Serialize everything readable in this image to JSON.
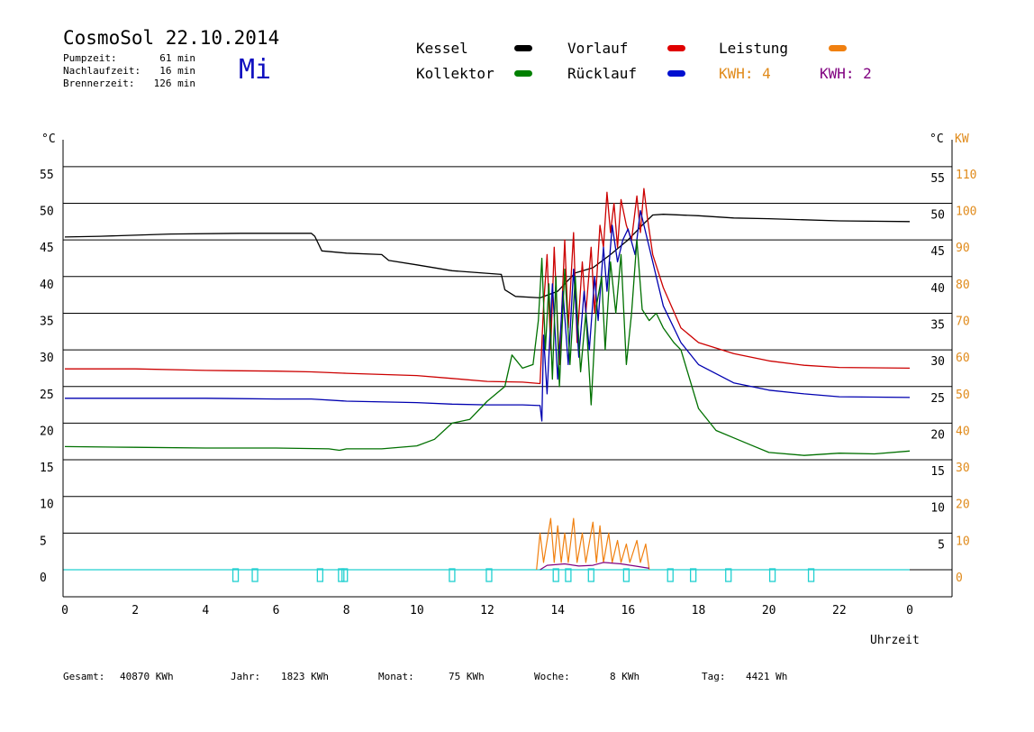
{
  "header": {
    "title": "CosmoSol 22.10.2014",
    "day": "Mi",
    "stats": [
      {
        "label": "Pumpzeit:",
        "value": "61 min"
      },
      {
        "label": "Nachlaufzeit:",
        "value": "16 min"
      },
      {
        "label": "Brennerzeit:",
        "value": "126 min"
      }
    ]
  },
  "legend": {
    "items": [
      {
        "label": "Kessel",
        "color": "#000000"
      },
      {
        "label": "Vorlauf",
        "color": "#e00000"
      },
      {
        "label": "Leistung",
        "color": "#f08010"
      },
      {
        "label": "Kollektor",
        "color": "#008000"
      },
      {
        "label": "Rücklauf",
        "color": "#0010d0"
      }
    ],
    "kwh": [
      {
        "text": "KWH: 4",
        "color": "#e08a1a"
      },
      {
        "text": "KWH: 2",
        "color": "#800080"
      }
    ]
  },
  "footer": [
    {
      "label": "Gesamt:",
      "value": "40870 KWh"
    },
    {
      "label": "Jahr:",
      "value": "1823 KWh"
    },
    {
      "label": "Monat:",
      "value": "75 KWh"
    },
    {
      "label": "Woche:",
      "value": "8 KWh"
    },
    {
      "label": "Tag:",
      "value": "4421 Wh"
    }
  ],
  "chart_data": {
    "type": "line",
    "xlabel": "Uhrzeit",
    "ylabel_left": "°C",
    "ylabel_right_1": "°C",
    "ylabel_right_2": "KW",
    "xlim": [
      0,
      24
    ],
    "ylim": [
      -4,
      60
    ],
    "x_ticks": [
      "0",
      "2",
      "4",
      "6",
      "8",
      "10",
      "12",
      "14",
      "16",
      "18",
      "20",
      "22",
      "0"
    ],
    "y_ticks_left": [
      0,
      5,
      10,
      15,
      20,
      25,
      30,
      35,
      40,
      45,
      50,
      55
    ],
    "y_ticks_right_c": [
      5,
      10,
      15,
      20,
      25,
      30,
      35,
      40,
      45,
      50,
      55
    ],
    "y_ticks_right_kw": [
      0,
      10,
      20,
      30,
      40,
      50,
      60,
      70,
      80,
      90,
      100,
      110
    ],
    "grid": true,
    "colors": {
      "kessel": "#000000",
      "vorlauf": "#cc0000",
      "ruecklauf": "#0000b0",
      "kollektor": "#007000",
      "leistung": "#f08010",
      "leistung2": "#800080",
      "pump": "#20d0d0",
      "baseline": "#20d0d0"
    },
    "series": [
      {
        "name": "Kessel",
        "key": "kessel",
        "points": [
          [
            0,
            45.4
          ],
          [
            1,
            45.5
          ],
          [
            3,
            45.8
          ],
          [
            5,
            45.9
          ],
          [
            7,
            45.9
          ],
          [
            7.1,
            45.5
          ],
          [
            7.3,
            43.5
          ],
          [
            8,
            43.2
          ],
          [
            9,
            43
          ],
          [
            9.2,
            42.2
          ],
          [
            10,
            41.6
          ],
          [
            11,
            40.8
          ],
          [
            12.4,
            40.3
          ],
          [
            12.5,
            38.2
          ],
          [
            12.8,
            37.3
          ],
          [
            13.5,
            37.1
          ],
          [
            14,
            38
          ],
          [
            14.5,
            40.5
          ],
          [
            15,
            41.2
          ],
          [
            15.5,
            43
          ],
          [
            16,
            45
          ],
          [
            16.4,
            47
          ],
          [
            16.7,
            48.4
          ],
          [
            17,
            48.5
          ],
          [
            18,
            48.3
          ],
          [
            19,
            48
          ],
          [
            20,
            47.9
          ],
          [
            22,
            47.6
          ],
          [
            24,
            47.5
          ]
        ]
      },
      {
        "name": "Vorlauf",
        "key": "vorlauf",
        "points": [
          [
            0,
            27.4
          ],
          [
            2,
            27.4
          ],
          [
            4,
            27.2
          ],
          [
            6,
            27.1
          ],
          [
            7,
            27
          ],
          [
            8,
            26.8
          ],
          [
            10,
            26.5
          ],
          [
            11,
            26.1
          ],
          [
            12,
            25.7
          ],
          [
            13,
            25.6
          ],
          [
            13.5,
            25.4
          ],
          [
            13.6,
            36
          ],
          [
            13.7,
            43
          ],
          [
            13.8,
            30
          ],
          [
            13.9,
            44
          ],
          [
            14.05,
            28
          ],
          [
            14.2,
            45
          ],
          [
            14.3,
            33
          ],
          [
            14.45,
            46
          ],
          [
            14.55,
            31
          ],
          [
            14.7,
            42
          ],
          [
            14.8,
            35
          ],
          [
            14.95,
            44
          ],
          [
            15.05,
            35
          ],
          [
            15.2,
            47
          ],
          [
            15.3,
            44
          ],
          [
            15.4,
            51.5
          ],
          [
            15.5,
            46
          ],
          [
            15.6,
            50
          ],
          [
            15.7,
            44
          ],
          [
            15.8,
            50.5
          ],
          [
            15.95,
            47
          ],
          [
            16.1,
            45
          ],
          [
            16.25,
            51
          ],
          [
            16.35,
            46
          ],
          [
            16.45,
            52
          ],
          [
            16.55,
            48
          ],
          [
            16.7,
            43
          ],
          [
            17,
            38.5
          ],
          [
            17.5,
            33
          ],
          [
            18,
            31
          ],
          [
            19,
            29.5
          ],
          [
            20,
            28.5
          ],
          [
            21,
            27.9
          ],
          [
            22,
            27.6
          ],
          [
            24,
            27.5
          ]
        ]
      },
      {
        "name": "Rücklauf",
        "key": "ruecklauf",
        "points": [
          [
            0,
            23.4
          ],
          [
            2,
            23.4
          ],
          [
            4,
            23.4
          ],
          [
            6,
            23.3
          ],
          [
            7,
            23.3
          ],
          [
            8,
            23
          ],
          [
            10,
            22.8
          ],
          [
            11,
            22.6
          ],
          [
            12,
            22.5
          ],
          [
            13,
            22.5
          ],
          [
            13.5,
            22.4
          ],
          [
            13.55,
            20.3
          ],
          [
            13.6,
            32
          ],
          [
            13.7,
            24
          ],
          [
            13.85,
            39
          ],
          [
            14,
            26
          ],
          [
            14.15,
            38
          ],
          [
            14.3,
            28
          ],
          [
            14.45,
            41
          ],
          [
            14.6,
            29
          ],
          [
            14.75,
            38
          ],
          [
            14.9,
            30
          ],
          [
            15.05,
            40
          ],
          [
            15.15,
            34
          ],
          [
            15.3,
            44
          ],
          [
            15.4,
            38
          ],
          [
            15.55,
            47
          ],
          [
            15.7,
            42
          ],
          [
            15.85,
            45
          ],
          [
            16,
            46.5
          ],
          [
            16.2,
            43
          ],
          [
            16.35,
            49
          ],
          [
            16.5,
            46
          ],
          [
            16.7,
            42
          ],
          [
            17,
            36
          ],
          [
            17.5,
            31
          ],
          [
            18,
            28
          ],
          [
            19,
            25.5
          ],
          [
            20,
            24.5
          ],
          [
            21,
            24
          ],
          [
            22,
            23.6
          ],
          [
            24,
            23.5
          ]
        ]
      },
      {
        "name": "Kollektor",
        "key": "kollektor",
        "points": [
          [
            0,
            16.8
          ],
          [
            2,
            16.7
          ],
          [
            4,
            16.6
          ],
          [
            6,
            16.6
          ],
          [
            7.5,
            16.5
          ],
          [
            7.8,
            16.3
          ],
          [
            8,
            16.5
          ],
          [
            9,
            16.5
          ],
          [
            10,
            16.9
          ],
          [
            10.5,
            17.8
          ],
          [
            11,
            20
          ],
          [
            11.5,
            20.5
          ],
          [
            12,
            23
          ],
          [
            12.5,
            25
          ],
          [
            12.7,
            29.3
          ],
          [
            13,
            27.5
          ],
          [
            13.3,
            28
          ],
          [
            13.45,
            34
          ],
          [
            13.55,
            42.5
          ],
          [
            13.65,
            30
          ],
          [
            13.75,
            39
          ],
          [
            13.85,
            26
          ],
          [
            13.95,
            40
          ],
          [
            14.05,
            25
          ],
          [
            14.2,
            41
          ],
          [
            14.35,
            28
          ],
          [
            14.5,
            40
          ],
          [
            14.65,
            27
          ],
          [
            14.8,
            35
          ],
          [
            14.95,
            22.5
          ],
          [
            15.1,
            36
          ],
          [
            15.25,
            40
          ],
          [
            15.35,
            30
          ],
          [
            15.5,
            42
          ],
          [
            15.65,
            35
          ],
          [
            15.8,
            43
          ],
          [
            15.95,
            28
          ],
          [
            16.1,
            35
          ],
          [
            16.25,
            45
          ],
          [
            16.4,
            35.5
          ],
          [
            16.6,
            34
          ],
          [
            16.8,
            35
          ],
          [
            17,
            33
          ],
          [
            17.3,
            31
          ],
          [
            17.5,
            30
          ],
          [
            18,
            22
          ],
          [
            18.5,
            19
          ],
          [
            19,
            18
          ],
          [
            19.5,
            17
          ],
          [
            20,
            16
          ],
          [
            21,
            15.6
          ],
          [
            22,
            15.9
          ],
          [
            23,
            15.8
          ],
          [
            24,
            16.2
          ]
        ]
      },
      {
        "name": "Leistung",
        "key": "leistung",
        "points": [
          [
            13.4,
            0
          ],
          [
            13.5,
            5
          ],
          [
            13.6,
            1
          ],
          [
            13.8,
            7
          ],
          [
            13.9,
            1
          ],
          [
            14,
            6
          ],
          [
            14.1,
            1
          ],
          [
            14.2,
            5
          ],
          [
            14.3,
            1
          ],
          [
            14.45,
            7
          ],
          [
            14.55,
            1
          ],
          [
            14.7,
            5
          ],
          [
            14.8,
            1
          ],
          [
            15,
            6.5
          ],
          [
            15.1,
            1
          ],
          [
            15.2,
            6
          ],
          [
            15.3,
            1
          ],
          [
            15.45,
            5
          ],
          [
            15.55,
            1
          ],
          [
            15.7,
            4
          ],
          [
            15.8,
            1
          ],
          [
            15.95,
            3.5
          ],
          [
            16.05,
            1
          ],
          [
            16.25,
            4
          ],
          [
            16.35,
            1
          ],
          [
            16.5,
            3.5
          ],
          [
            16.6,
            0
          ]
        ]
      },
      {
        "name": "Leistung2",
        "key": "leistung2",
        "points": [
          [
            13.5,
            0
          ],
          [
            13.7,
            0.6
          ],
          [
            14.2,
            0.8
          ],
          [
            14.6,
            0.5
          ],
          [
            15,
            0.6
          ],
          [
            15.3,
            1
          ],
          [
            15.8,
            0.8
          ],
          [
            16.2,
            0.5
          ],
          [
            16.6,
            0.2
          ]
        ]
      }
    ],
    "pump_events": [
      4.85,
      5.4,
      7.25,
      7.85,
      7.95,
      11.0,
      12.05,
      13.95,
      14.3,
      14.95,
      15.95,
      17.2,
      17.85,
      18.85,
      20.1,
      21.2
    ]
  }
}
